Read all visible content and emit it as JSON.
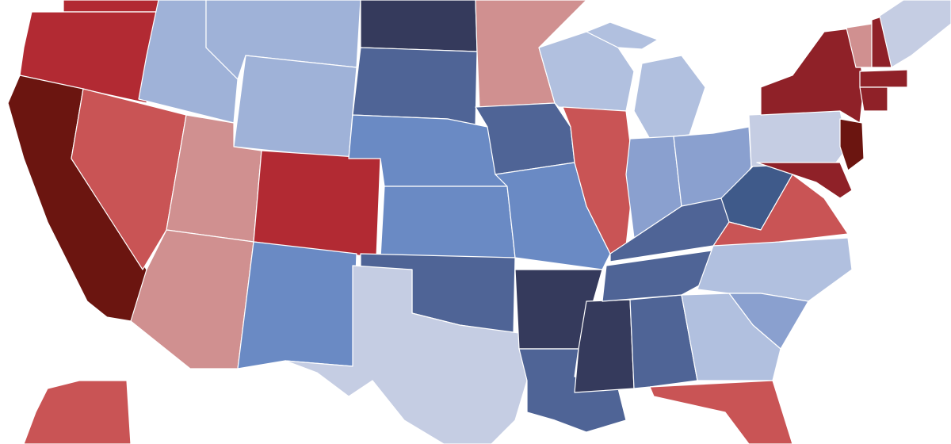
{
  "map": {
    "fills": [
      "#6b1510",
      "#b22a33",
      "#c95455",
      "#d09090",
      "#8f2128",
      "#9fb2d8",
      "#6a8ac4",
      "#4f6496",
      "#353a5c",
      "#c5cde3",
      "#b1c0df",
      "#8aa0cf",
      "#3f5a8a"
    ]
  }
}
